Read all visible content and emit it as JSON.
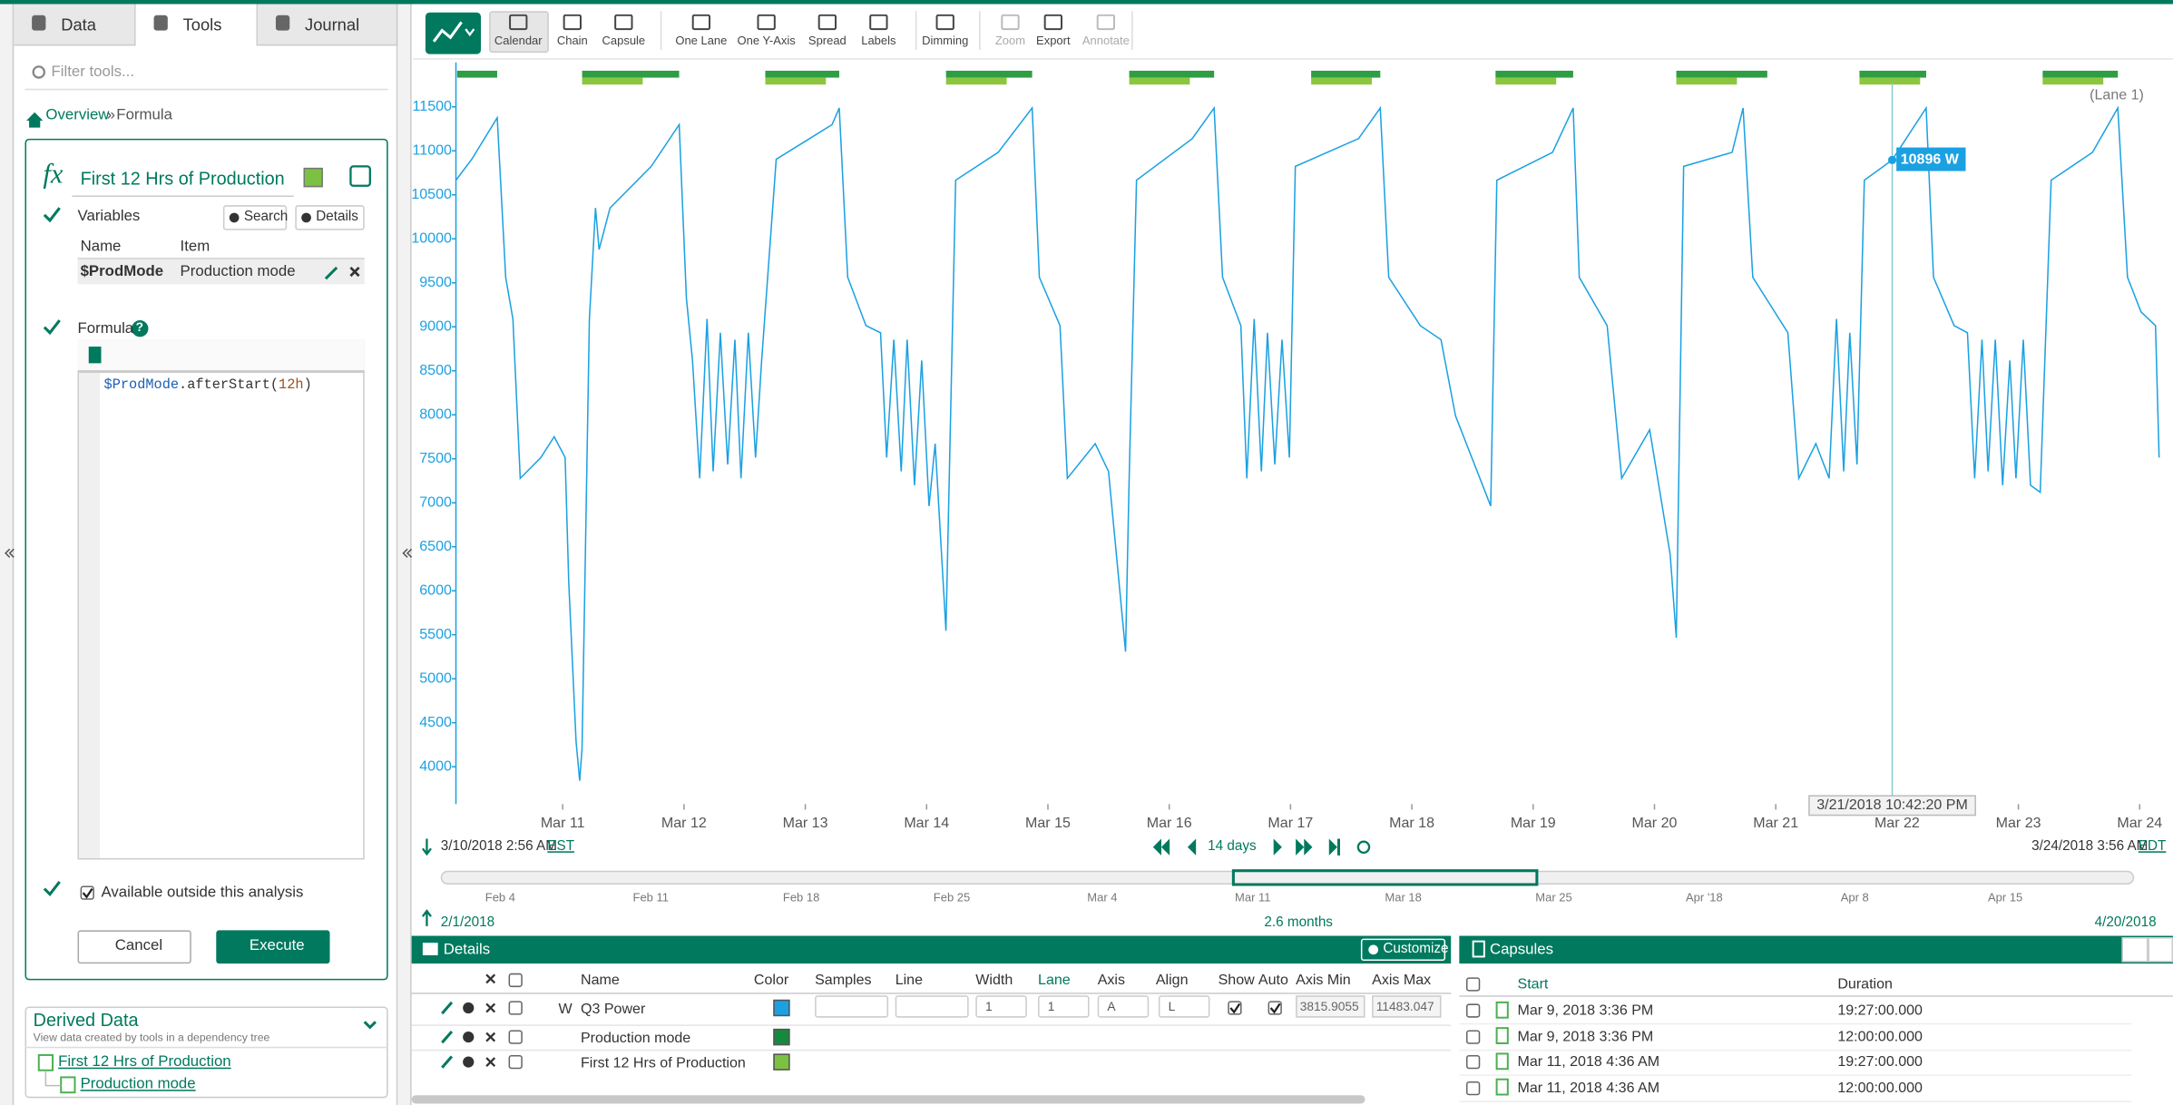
{
  "sidebar": {
    "tabs": [
      "Data",
      "Tools",
      "Journal"
    ],
    "filter_placeholder": "Filter tools...",
    "breadcrumb": {
      "link": "Overview",
      "separator": "»",
      "current": "Formula"
    },
    "formula_icon": "fx",
    "formula_name": "First 12 Hrs of Production",
    "formula_color": "#7cc242",
    "variables": {
      "label": "Variables",
      "buttons": [
        "Search",
        "Details"
      ],
      "headers": [
        "Name",
        "Item"
      ],
      "rows": [
        [
          "$ProdMode",
          "Production mode"
        ]
      ]
    },
    "formula": {
      "label": "Formula",
      "help": "?",
      "code": [
        "$ProdMode",
        ".afterStart(",
        "12h",
        ")"
      ]
    },
    "available": "Available outside this analysis",
    "buttons": [
      "Cancel",
      "Execute"
    ],
    "derived": {
      "title": "Derived Data",
      "subtitle": "View data created by tools in a dependency tree",
      "items": [
        "First 12 Hrs of Production",
        "Production mode"
      ]
    }
  },
  "toolbar": [
    "Calendar",
    "Chain",
    "Capsule",
    "One Lane",
    "One Y-Axis",
    "Spread",
    "Labels",
    "Dimming",
    "Zoom",
    "Export",
    "Annotate"
  ],
  "chart_data": {
    "type": "line",
    "lane_label": "(Lane 1)",
    "x": [
      10.12,
      10.25,
      10.46,
      10.53,
      10.59,
      10.65,
      10.82,
      10.93,
      11.02,
      11.05,
      11.11,
      11.14,
      11.16,
      11.22,
      11.27,
      11.3,
      11.39,
      11.73,
      11.96,
      12.02,
      12.07,
      12.13,
      12.19,
      12.24,
      12.3,
      12.36,
      12.42,
      12.47,
      12.53,
      12.59,
      12.64,
      12.76,
      13.22,
      13.28,
      13.35,
      13.5,
      13.62,
      13.67,
      13.73,
      13.79,
      13.84,
      13.9,
      13.96,
      14.02,
      14.07,
      14.16,
      14.24,
      14.59,
      14.87,
      14.93,
      15.1,
      15.16,
      15.39,
      15.5,
      15.64,
      15.67,
      15.73,
      16.19,
      16.37,
      16.44,
      16.59,
      16.64,
      16.7,
      16.76,
      16.81,
      16.87,
      16.93,
      16.99,
      17.04,
      17.56,
      17.74,
      17.81,
      18.07,
      18.24,
      18.36,
      18.65,
      18.7,
      19.16,
      19.33,
      19.38,
      19.61,
      19.73,
      19.96,
      20.13,
      20.18,
      20.24,
      20.64,
      20.73,
      20.81,
      21.1,
      21.19,
      21.33,
      21.44,
      21.5,
      21.56,
      21.61,
      21.67,
      21.73,
      21.96,
      22.24,
      22.3,
      22.47,
      22.58,
      22.64,
      22.7,
      22.75,
      22.81,
      22.87,
      22.93,
      22.98,
      23.04,
      23.1,
      23.18,
      23.27,
      23.61,
      23.82,
      23.9,
      24.01,
      24.13,
      24.16
    ],
    "series": [
      {
        "color": "#1ba1e2",
        "values": [
          10666,
          10903,
          11376,
          9563,
          9090,
          7278,
          7514,
          7751,
          7514,
          6096,
          4284,
          3842,
          4205,
          9090,
          10351,
          9878,
          10351,
          10824,
          11297,
          9327,
          8618,
          7278,
          9090,
          7357,
          8933,
          7436,
          8854,
          7278,
          8933,
          7514,
          8618,
          10903,
          11297,
          11486,
          9563,
          9012,
          8933,
          7514,
          8854,
          7357,
          8854,
          7199,
          8618,
          6963,
          7672,
          5544,
          10666,
          10982,
          11486,
          9563,
          9012,
          7278,
          7672,
          7357,
          5308,
          7278,
          10666,
          11139,
          11486,
          9563,
          9012,
          7278,
          9090,
          7357,
          8933,
          7436,
          8854,
          7514,
          10824,
          11139,
          11486,
          9563,
          9012,
          8854,
          7987,
          6963,
          10666,
          10982,
          11486,
          9563,
          9012,
          7278,
          7830,
          6411,
          5466,
          10824,
          10982,
          11486,
          9563,
          8933,
          7278,
          7672,
          7278,
          9090,
          7357,
          8933,
          7436,
          10666,
          10896,
          11486,
          9563,
          9012,
          8933,
          7278,
          8854,
          7357,
          8854,
          7199,
          8618,
          7278,
          8854,
          7199,
          7120,
          10666,
          10982,
          11486,
          9563,
          9170,
          9012,
          7514
        ]
      }
    ],
    "xlim": [
      10.12,
      24.16
    ],
    "xticks": [
      {
        "value": 11,
        "label": "Mar 11"
      },
      {
        "value": 12,
        "label": "Mar 12"
      },
      {
        "value": 13,
        "label": "Mar 13"
      },
      {
        "value": 14,
        "label": "Mar 14"
      },
      {
        "value": 15,
        "label": "Mar 15"
      },
      {
        "value": 16,
        "label": "Mar 16"
      },
      {
        "value": 17,
        "label": "Mar 17"
      },
      {
        "value": 18,
        "label": "Mar 18"
      },
      {
        "value": 19,
        "label": "Mar 19"
      },
      {
        "value": 20,
        "label": "Mar 20"
      },
      {
        "value": 21,
        "label": "Mar 21"
      },
      {
        "value": 22,
        "label": "Mar 22"
      },
      {
        "value": 23,
        "label": "Mar 23"
      },
      {
        "value": 24,
        "label": "Mar 24"
      }
    ],
    "ylim": [
      3575,
      12005
    ],
    "yticks": [
      4000,
      4500,
      5000,
      5500,
      6000,
      6500,
      7000,
      7500,
      8000,
      8500,
      9000,
      9500,
      10000,
      10500,
      11000,
      11500
    ],
    "capsules": [
      {
        "color": "#2e9e44",
        "ranges": [
          [
            10.13,
            10.46
          ],
          [
            11.16,
            11.96
          ],
          [
            12.67,
            13.28
          ],
          [
            14.16,
            14.87
          ],
          [
            15.67,
            16.37
          ],
          [
            17.17,
            17.74
          ],
          [
            18.69,
            19.33
          ],
          [
            20.18,
            20.93
          ],
          [
            21.69,
            22.24
          ],
          [
            23.2,
            23.82
          ]
        ]
      },
      {
        "color": "#8cc63f",
        "ranges": [
          [
            11.16,
            11.66
          ],
          [
            12.67,
            13.17
          ],
          [
            14.16,
            14.66
          ],
          [
            15.67,
            16.17
          ],
          [
            17.17,
            17.67
          ],
          [
            18.69,
            19.19
          ],
          [
            20.18,
            20.68
          ],
          [
            21.69,
            22.19
          ],
          [
            23.2,
            23.7
          ]
        ]
      }
    ],
    "cursor": {
      "x": 21.96,
      "value": 10896,
      "label": "10896 W",
      "time": "3/21/2018 10:42:20 PM"
    }
  },
  "time_bar": {
    "start": "3/10/2018 2:56 AM",
    "start_zone": "EST",
    "span": "14 days",
    "end": "3/24/2018 3:56 AM",
    "end_zone": "EDT"
  },
  "overview": {
    "labels": [
      "Feb 4",
      "Feb 11",
      "Feb 18",
      "Feb 25",
      "Mar 4",
      "Mar 11",
      "Mar 18",
      "Mar 25",
      "Apr '18",
      "Apr 8",
      "Apr 15"
    ],
    "start": "2/1/2018",
    "span": "2.6 months",
    "end": "4/20/2018"
  },
  "details": {
    "title": "Details",
    "customize": "Customize",
    "headers": [
      "Name",
      "Color",
      "Samples",
      "Line",
      "Width",
      "Lane",
      "Axis",
      "Align",
      "Show",
      "Auto",
      "Axis Min",
      "Axis Max"
    ],
    "rows": [
      {
        "unit": "W",
        "name": "Q3 Power",
        "color": "#1ba1e2",
        "width": "1",
        "lane": "1",
        "axis": "A",
        "align": "L",
        "axis_min": "3815.9055",
        "axis_max": "11483.047"
      },
      {
        "name": "Production mode",
        "color": "#168a3c"
      },
      {
        "name": "First 12 Hrs of Production",
        "color": "#7cc242"
      }
    ]
  },
  "capsules": {
    "title": "Capsules",
    "headers": [
      "Start",
      "Duration"
    ],
    "rows": [
      [
        "Mar 9, 2018 3:36 PM",
        "19:27:00.000"
      ],
      [
        "Mar 9, 2018 3:36 PM",
        "12:00:00.000"
      ],
      [
        "Mar 11, 2018 4:36 AM",
        "19:27:00.000"
      ],
      [
        "Mar 11, 2018 4:36 AM",
        "12:00:00.000"
      ]
    ]
  }
}
